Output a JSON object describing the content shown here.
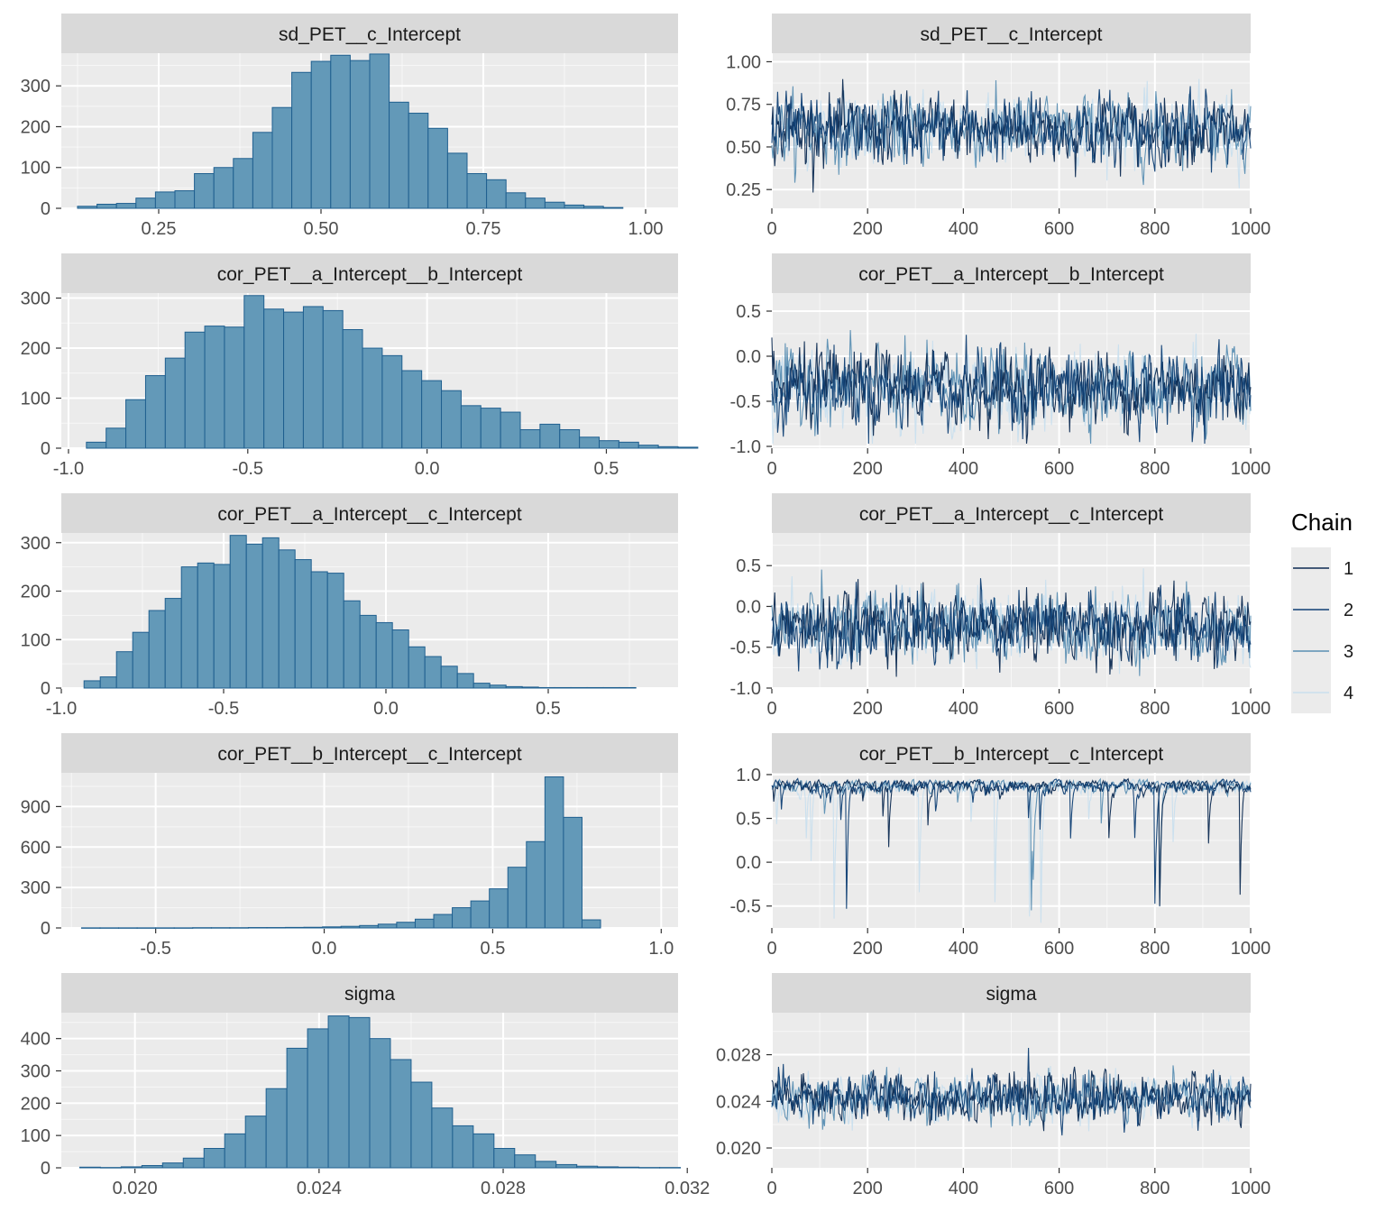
{
  "legend": {
    "title": "Chain",
    "position": "right",
    "items": [
      {
        "label": "1",
        "color": "#0d2b52"
      },
      {
        "label": "2",
        "color": "#0f3f74"
      },
      {
        "label": "3",
        "color": "#5b8fb3"
      },
      {
        "label": "4",
        "color": "#c9dfee"
      }
    ]
  },
  "colors": {
    "panel_bg": "#ebebeb",
    "strip_bg": "#d9d9d9",
    "bar_fill": "#6399b8",
    "bar_stroke": "#1f5f8f",
    "grid": "#ffffff"
  },
  "chart_data": [
    {
      "type": "bar",
      "kind": "histogram",
      "title": "sd_PET__c_Intercept",
      "bin_start": 0.125,
      "bin_width": 0.03,
      "values": [
        5,
        10,
        12,
        25,
        40,
        43,
        85,
        100,
        122,
        186,
        247,
        333,
        360,
        375,
        362,
        378,
        260,
        233,
        196,
        135,
        85,
        70,
        38,
        25,
        15,
        8,
        5,
        2
      ],
      "xlim": [
        0.1,
        1.05
      ],
      "ylim": [
        0,
        380
      ],
      "xticks": [
        0.25,
        0.5,
        0.75,
        1.0
      ],
      "xtick_labels": [
        "0.25",
        "0.50",
        "0.75",
        "1.00"
      ],
      "yticks": [
        0,
        100,
        200,
        300
      ],
      "ytick_labels": [
        "0",
        "100",
        "200",
        "300"
      ]
    },
    {
      "type": "line",
      "kind": "trace",
      "title": "sd_PET__c_Intercept",
      "iterations": 1000,
      "center": 0.6,
      "spread": 0.14,
      "min": 0.13,
      "max": 1.02,
      "xlim": [
        0,
        1000
      ],
      "ylim": [
        0.14,
        1.05
      ],
      "xticks": [
        0,
        200,
        400,
        600,
        800,
        1000
      ],
      "xtick_labels": [
        "0",
        "200",
        "400",
        "600",
        "800",
        "1000"
      ],
      "yticks": [
        0.25,
        0.5,
        0.75,
        1.0
      ],
      "ytick_labels": [
        "0.25",
        "0.50",
        "0.75",
        "1.00"
      ]
    },
    {
      "type": "bar",
      "kind": "histogram",
      "title": "cor_PET__a_Intercept__b_Intercept",
      "bin_start": -0.95,
      "bin_width": 0.055,
      "values": [
        12,
        40,
        97,
        145,
        180,
        232,
        244,
        242,
        305,
        278,
        272,
        283,
        275,
        237,
        200,
        185,
        155,
        135,
        115,
        85,
        80,
        72,
        37,
        48,
        37,
        22,
        15,
        12,
        6,
        3,
        2
      ],
      "xlim": [
        -1.02,
        0.7
      ],
      "ylim": [
        0,
        310
      ],
      "xticks": [
        -1.0,
        -0.5,
        0.0,
        0.5
      ],
      "xtick_labels": [
        "-1.0",
        "-0.5",
        "0.0",
        "0.5"
      ],
      "yticks": [
        0,
        100,
        200,
        300
      ],
      "ytick_labels": [
        "0",
        "100",
        "200",
        "300"
      ]
    },
    {
      "type": "line",
      "kind": "trace",
      "title": "cor_PET__a_Intercept__b_Intercept",
      "iterations": 1000,
      "center": -0.35,
      "spread": 0.3,
      "min": -0.97,
      "max": 0.63,
      "xlim": [
        0,
        1000
      ],
      "ylim": [
        -1.02,
        0.7
      ],
      "xticks": [
        0,
        200,
        400,
        600,
        800,
        1000
      ],
      "xtick_labels": [
        "0",
        "200",
        "400",
        "600",
        "800",
        "1000"
      ],
      "yticks": [
        -1.0,
        -0.5,
        0.0,
        0.5
      ],
      "ytick_labels": [
        "-1.0",
        "-0.5",
        "0.0",
        "0.5"
      ]
    },
    {
      "type": "bar",
      "kind": "histogram",
      "title": "cor_PET__a_Intercept__c_Intercept",
      "bin_start": -0.93,
      "bin_width": 0.05,
      "values": [
        15,
        23,
        75,
        115,
        160,
        185,
        250,
        258,
        255,
        315,
        297,
        310,
        285,
        265,
        240,
        237,
        180,
        150,
        135,
        120,
        85,
        65,
        45,
        30,
        10,
        6,
        3,
        2,
        1,
        1,
        1,
        1,
        1,
        1
      ],
      "xlim": [
        -1.0,
        0.9
      ],
      "ylim": [
        0,
        320
      ],
      "xticks": [
        -1.0,
        -0.5,
        0.0,
        0.5
      ],
      "xtick_labels": [
        "-1.0",
        "-0.5",
        "0.0",
        "0.5"
      ],
      "yticks": [
        0,
        100,
        200,
        300
      ],
      "ytick_labels": [
        "0",
        "100",
        "200",
        "300"
      ]
    },
    {
      "type": "line",
      "kind": "trace",
      "title": "cor_PET__a_Intercept__c_Intercept",
      "iterations": 1000,
      "center": -0.25,
      "spread": 0.3,
      "min": -0.93,
      "max": 0.84,
      "xlim": [
        0,
        1000
      ],
      "ylim": [
        -1.0,
        0.9
      ],
      "xticks": [
        0,
        200,
        400,
        600,
        800,
        1000
      ],
      "xtick_labels": [
        "0",
        "200",
        "400",
        "600",
        "800",
        "1000"
      ],
      "yticks": [
        -1.0,
        -0.5,
        0.0,
        0.5
      ],
      "ytick_labels": [
        "-1.0",
        "-0.5",
        "0.0",
        "0.5"
      ]
    },
    {
      "type": "bar",
      "kind": "histogram",
      "title": "cor_PET__b_Intercept__c_Intercept",
      "bin_start": -0.72,
      "bin_width": 0.055,
      "values": [
        1,
        1,
        1,
        1,
        1,
        1,
        2,
        2,
        2,
        3,
        3,
        4,
        5,
        8,
        12,
        18,
        28,
        42,
        65,
        100,
        150,
        200,
        290,
        450,
        640,
        1120,
        820,
        60
      ],
      "xlim": [
        -0.78,
        1.05
      ],
      "ylim": [
        0,
        1150
      ],
      "xticks": [
        -0.5,
        0.0,
        0.5,
        1.0
      ],
      "xtick_labels": [
        "-0.5",
        "0.0",
        "0.5",
        "1.0"
      ],
      "yticks": [
        0,
        300,
        600,
        900
      ],
      "ytick_labels": [
        "0",
        "300",
        "600",
        "900"
      ]
    },
    {
      "type": "line",
      "kind": "trace",
      "title": "cor_PET__b_Intercept__c_Intercept",
      "iterations": 1000,
      "center": 0.84,
      "spread": 0.1,
      "min": -0.7,
      "max": 0.97,
      "upper_bound": 0.97,
      "skew": "left",
      "xlim": [
        0,
        1000
      ],
      "ylim": [
        -0.75,
        1.02
      ],
      "xticks": [
        0,
        200,
        400,
        600,
        800,
        1000
      ],
      "xtick_labels": [
        "0",
        "200",
        "400",
        "600",
        "800",
        "1000"
      ],
      "yticks": [
        -0.5,
        0.0,
        0.5,
        1.0
      ],
      "ytick_labels": [
        "-0.5",
        "0.0",
        "0.5",
        "1.0"
      ]
    },
    {
      "type": "bar",
      "kind": "histogram",
      "title": "sigma",
      "bin_start": 0.0188,
      "bin_width": 0.00045,
      "values": [
        2,
        1,
        3,
        7,
        15,
        30,
        60,
        105,
        160,
        245,
        370,
        430,
        470,
        465,
        400,
        335,
        265,
        185,
        130,
        105,
        60,
        40,
        20,
        10,
        5,
        3,
        2,
        1,
        1
      ],
      "xlim": [
        0.0184,
        0.0318
      ],
      "ylim": [
        0,
        480
      ],
      "xticks": [
        0.02,
        0.024,
        0.028,
        0.032
      ],
      "xtick_labels": [
        "0.020",
        "0.024",
        "0.028",
        "0.032"
      ],
      "yticks": [
        0,
        100,
        200,
        300,
        400
      ],
      "ytick_labels": [
        "0",
        "100",
        "200",
        "300",
        "400"
      ]
    },
    {
      "type": "line",
      "kind": "trace",
      "title": "sigma",
      "iterations": 1000,
      "center": 0.0243,
      "spread": 0.0014,
      "min": 0.0188,
      "max": 0.0312,
      "xlim": [
        0,
        1000
      ],
      "ylim": [
        0.0183,
        0.0316
      ],
      "xticks": [
        0,
        200,
        400,
        600,
        800,
        1000
      ],
      "xtick_labels": [
        "0",
        "200",
        "400",
        "600",
        "800",
        "1000"
      ],
      "yticks": [
        0.02,
        0.024,
        0.028
      ],
      "ytick_labels": [
        "0.020",
        "0.024",
        "0.028"
      ]
    }
  ]
}
